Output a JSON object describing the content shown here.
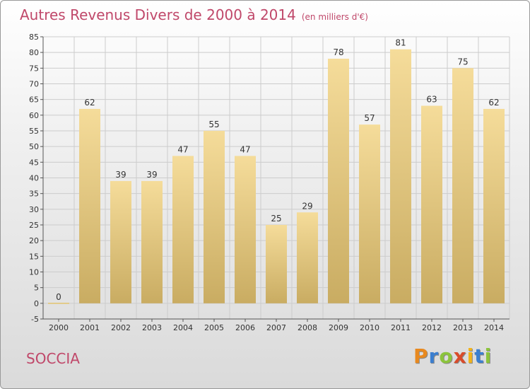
{
  "title": {
    "main": "Autres Revenus Divers de 2000 à 2014",
    "sub": "(en milliers d'€)"
  },
  "place": "SOCCIA",
  "brand": {
    "letters": [
      "P",
      "r",
      "o",
      "x",
      "i",
      "t",
      "i"
    ],
    "colors": [
      "#e8891f",
      "#3b7fd0",
      "#8cc43c",
      "#d94b2a",
      "#f2b31b",
      "#3b7fd0",
      "#8cc43c"
    ]
  },
  "colors": {
    "title": "#c0486a",
    "bar_light": "#f5dc9a",
    "bar_dark": "#c9ac62",
    "grid": "#cccccc",
    "axis": "#555555"
  },
  "chart_data": {
    "type": "bar",
    "categories": [
      "2000",
      "2001",
      "2002",
      "2003",
      "2004",
      "2005",
      "2006",
      "2007",
      "2008",
      "2009",
      "2010",
      "2011",
      "2012",
      "2013",
      "2014"
    ],
    "values": [
      0,
      62,
      39,
      39,
      47,
      55,
      47,
      25,
      29,
      78,
      57,
      81,
      63,
      75,
      62
    ],
    "ylim": [
      -5,
      85
    ],
    "yticks": [
      -5,
      0,
      5,
      10,
      15,
      20,
      25,
      30,
      35,
      40,
      45,
      50,
      55,
      60,
      65,
      70,
      75,
      80,
      85
    ],
    "grid": true,
    "legend": "none"
  }
}
